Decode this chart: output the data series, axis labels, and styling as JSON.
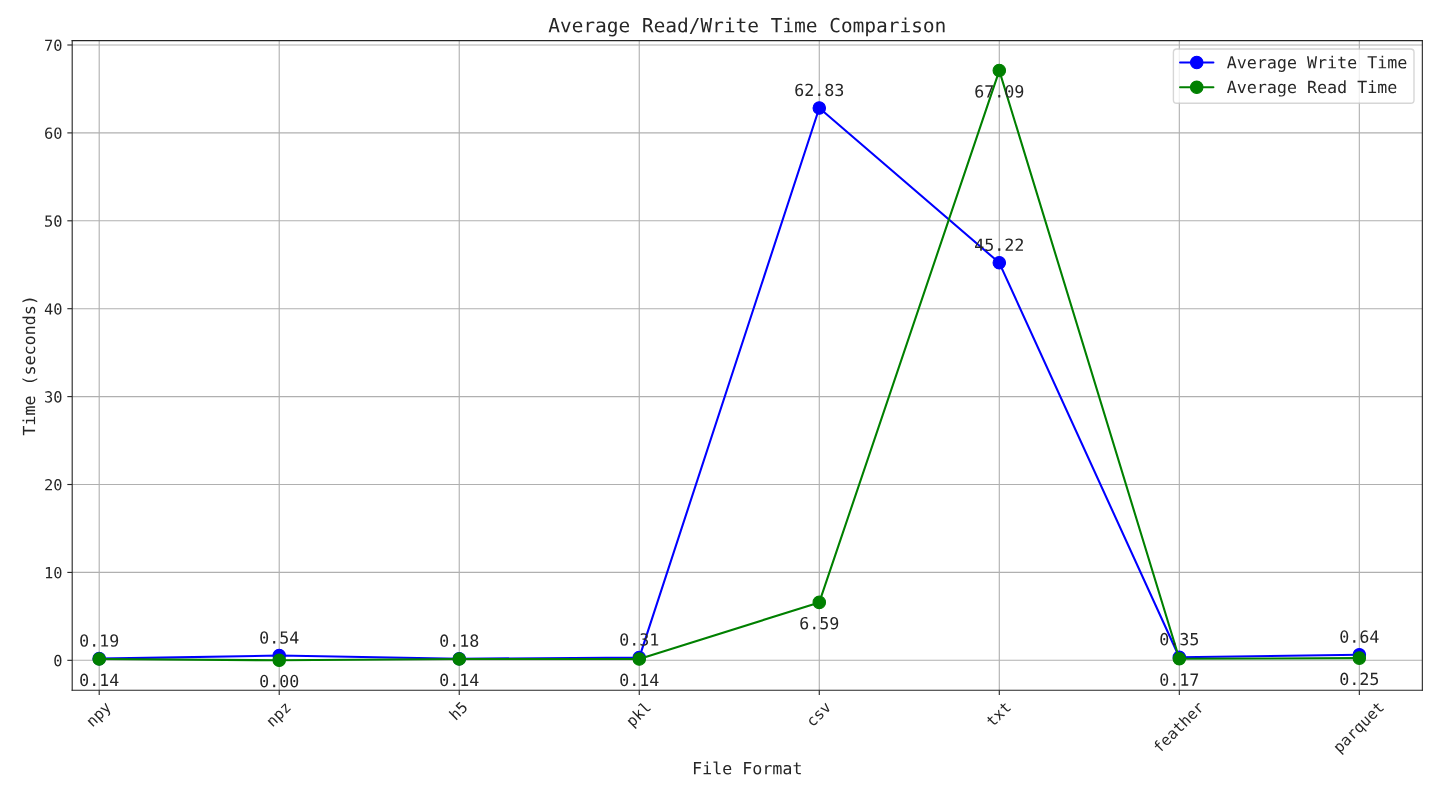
{
  "chart_data": {
    "type": "line",
    "title": "Average Read/Write Time Comparison",
    "xlabel": "File Format",
    "ylabel": "Time (seconds)",
    "categories": [
      "npy",
      "npz",
      "h5",
      "pkl",
      "csv",
      "txt",
      "feather",
      "parquet"
    ],
    "series": [
      {
        "name": "Average Write Time",
        "color": "#0000ff",
        "values": [
          0.19,
          0.54,
          0.18,
          0.31,
          62.83,
          45.22,
          0.35,
          0.64
        ],
        "value_labels": [
          "0.19",
          "0.54",
          "0.18",
          "0.31",
          "62.83",
          "45.22",
          "0.35",
          "0.64"
        ]
      },
      {
        "name": "Average Read Time",
        "color": "#008000",
        "values": [
          0.14,
          0.0,
          0.14,
          0.14,
          6.59,
          67.09,
          0.17,
          0.25
        ],
        "value_labels": [
          "0.14",
          "0.00",
          "0.14",
          "0.14",
          "6.59",
          "67.09",
          "0.17",
          "0.25"
        ]
      }
    ],
    "ylim": [
      -3.4,
      70.5
    ],
    "yticks": [
      0,
      10,
      20,
      30,
      40,
      50,
      60,
      70
    ],
    "grid": true,
    "legend": "top right",
    "marker": "circle",
    "line_style": "solid"
  }
}
